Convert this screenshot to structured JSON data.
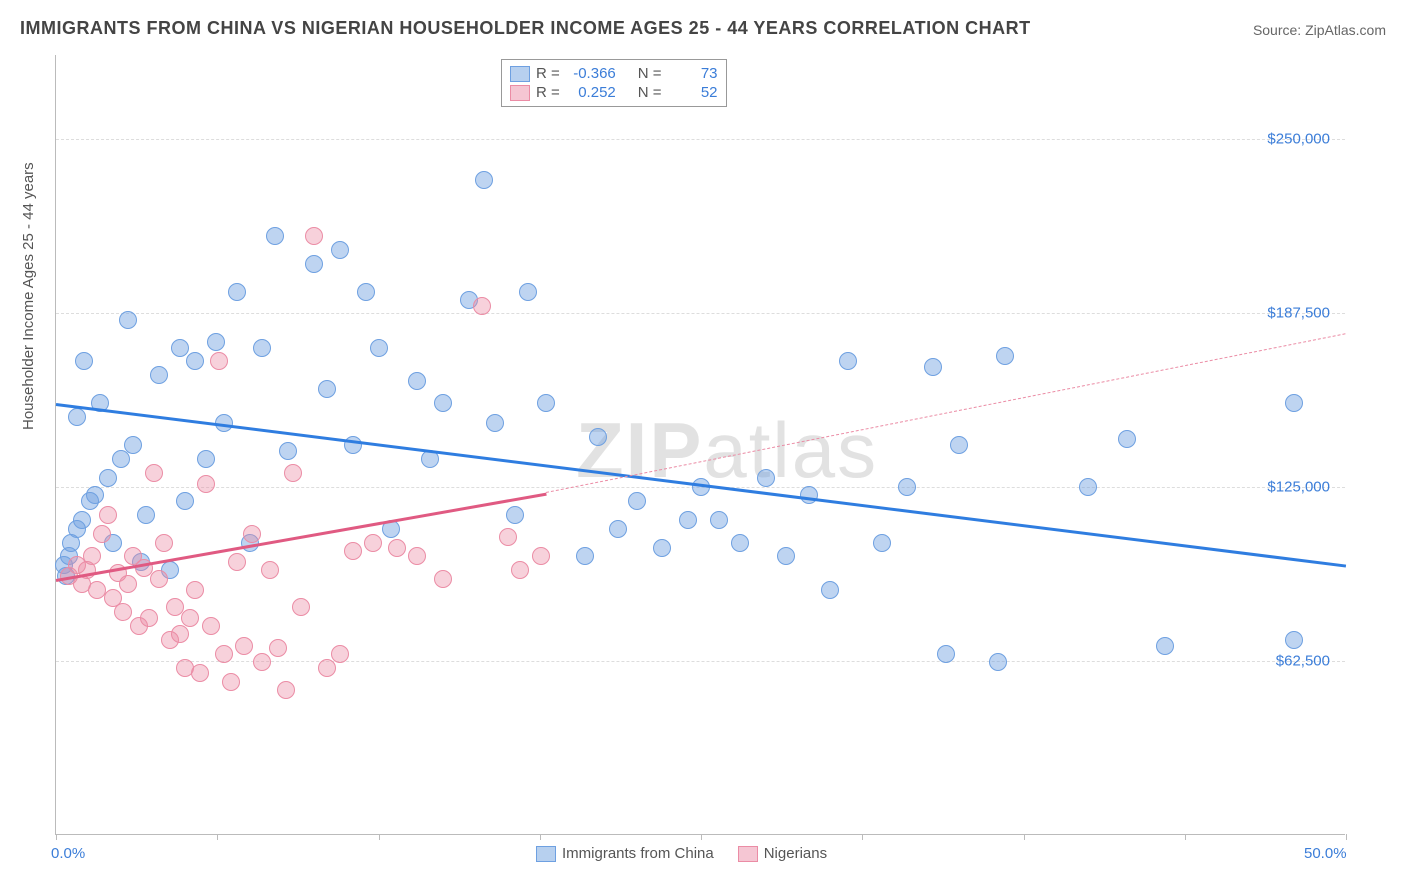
{
  "title": "IMMIGRANTS FROM CHINA VS NIGERIAN HOUSEHOLDER INCOME AGES 25 - 44 YEARS CORRELATION CHART",
  "source": "Source: ZipAtlas.com",
  "ylabel": "Householder Income Ages 25 - 44 years",
  "watermark_bold": "ZIP",
  "watermark_rest": "atlas",
  "chart": {
    "type": "scatter",
    "xlim": [
      0,
      50
    ],
    "ylim": [
      0,
      280000
    ],
    "background_color": "#ffffff",
    "grid_color": "#dddddd",
    "yticks": [
      {
        "v": 62500,
        "label": "$62,500"
      },
      {
        "v": 125000,
        "label": "$125,000"
      },
      {
        "v": 187500,
        "label": "$187,500"
      },
      {
        "v": 250000,
        "label": "$250,000"
      }
    ],
    "xticks_minor": [
      0,
      6.25,
      12.5,
      18.75,
      25,
      31.25,
      37.5,
      43.75,
      50
    ],
    "xtick_labels": [
      {
        "v": 0,
        "label": "0.0%"
      },
      {
        "v": 50,
        "label": "50.0%"
      }
    ]
  },
  "series": [
    {
      "name": "Immigrants from China",
      "color_fill": "rgba(110,160,225,0.45)",
      "color_stroke": "#6ea0e1",
      "swatch_fill": "#b7d0ef",
      "swatch_border": "#6ea0e1",
      "R": "-0.366",
      "N": "73",
      "marker_radius": 9,
      "trend": {
        "x1": 0,
        "y1": 155000,
        "x2": 50,
        "y2": 97000,
        "color": "#2f7de0",
        "width": 3,
        "dashed": false
      },
      "points": [
        [
          0.3,
          97000
        ],
        [
          0.4,
          93000
        ],
        [
          0.5,
          100000
        ],
        [
          0.6,
          105000
        ],
        [
          0.8,
          110000
        ],
        [
          0.8,
          150000
        ],
        [
          1.0,
          113000
        ],
        [
          1.1,
          170000
        ],
        [
          1.3,
          120000
        ],
        [
          1.5,
          122000
        ],
        [
          1.7,
          155000
        ],
        [
          2.0,
          128000
        ],
        [
          2.2,
          105000
        ],
        [
          2.5,
          135000
        ],
        [
          2.8,
          185000
        ],
        [
          3.0,
          140000
        ],
        [
          3.3,
          98000
        ],
        [
          3.5,
          115000
        ],
        [
          4.0,
          165000
        ],
        [
          4.4,
          95000
        ],
        [
          4.8,
          175000
        ],
        [
          5.0,
          120000
        ],
        [
          5.4,
          170000
        ],
        [
          5.8,
          135000
        ],
        [
          6.2,
          177000
        ],
        [
          6.5,
          148000
        ],
        [
          7.0,
          195000
        ],
        [
          7.5,
          105000
        ],
        [
          8.0,
          175000
        ],
        [
          8.5,
          215000
        ],
        [
          9.0,
          138000
        ],
        [
          10.0,
          205000
        ],
        [
          10.5,
          160000
        ],
        [
          11.0,
          210000
        ],
        [
          11.5,
          140000
        ],
        [
          12.0,
          195000
        ],
        [
          12.5,
          175000
        ],
        [
          13.0,
          110000
        ],
        [
          14.0,
          163000
        ],
        [
          14.5,
          135000
        ],
        [
          15.0,
          155000
        ],
        [
          16.0,
          192000
        ],
        [
          16.6,
          235000
        ],
        [
          17.0,
          148000
        ],
        [
          17.8,
          115000
        ],
        [
          18.3,
          195000
        ],
        [
          19.0,
          155000
        ],
        [
          20.5,
          100000
        ],
        [
          21.0,
          143000
        ],
        [
          21.8,
          110000
        ],
        [
          22.5,
          120000
        ],
        [
          23.5,
          103000
        ],
        [
          24.5,
          113000
        ],
        [
          25.0,
          125000
        ],
        [
          25.7,
          113000
        ],
        [
          26.5,
          105000
        ],
        [
          27.5,
          128000
        ],
        [
          28.3,
          100000
        ],
        [
          29.2,
          122000
        ],
        [
          30.0,
          88000
        ],
        [
          30.7,
          170000
        ],
        [
          32.0,
          105000
        ],
        [
          33.0,
          125000
        ],
        [
          34.0,
          168000
        ],
        [
          34.5,
          65000
        ],
        [
          35.0,
          140000
        ],
        [
          36.5,
          62000
        ],
        [
          36.8,
          172000
        ],
        [
          40.0,
          125000
        ],
        [
          41.5,
          142000
        ],
        [
          43.0,
          68000
        ],
        [
          48.0,
          70000
        ],
        [
          48.0,
          155000
        ]
      ]
    },
    {
      "name": "Nigerians",
      "color_fill": "rgba(235,140,165,0.40)",
      "color_stroke": "#eb8ca5",
      "swatch_fill": "#f5c6d3",
      "swatch_border": "#eb8ca5",
      "R": "0.252",
      "N": "52",
      "marker_radius": 9,
      "trend_solid": {
        "x1": 0,
        "y1": 92000,
        "x2": 19,
        "y2": 123000,
        "color": "#e05a82",
        "width": 3,
        "dashed": false
      },
      "trend_dashed": {
        "x1": 19,
        "y1": 123000,
        "x2": 50,
        "y2": 180000,
        "color": "#eb8ca5",
        "width": 1,
        "dashed": true
      },
      "points": [
        [
          0.5,
          93000
        ],
        [
          0.8,
          97000
        ],
        [
          1.0,
          90000
        ],
        [
          1.2,
          95000
        ],
        [
          1.4,
          100000
        ],
        [
          1.6,
          88000
        ],
        [
          1.8,
          108000
        ],
        [
          2.0,
          115000
        ],
        [
          2.2,
          85000
        ],
        [
          2.4,
          94000
        ],
        [
          2.6,
          80000
        ],
        [
          2.8,
          90000
        ],
        [
          3.0,
          100000
        ],
        [
          3.2,
          75000
        ],
        [
          3.4,
          96000
        ],
        [
          3.6,
          78000
        ],
        [
          3.8,
          130000
        ],
        [
          4.0,
          92000
        ],
        [
          4.2,
          105000
        ],
        [
          4.4,
          70000
        ],
        [
          4.6,
          82000
        ],
        [
          4.8,
          72000
        ],
        [
          5.0,
          60000
        ],
        [
          5.2,
          78000
        ],
        [
          5.4,
          88000
        ],
        [
          5.6,
          58000
        ],
        [
          5.8,
          126000
        ],
        [
          6.0,
          75000
        ],
        [
          6.3,
          170000
        ],
        [
          6.5,
          65000
        ],
        [
          6.8,
          55000
        ],
        [
          7.0,
          98000
        ],
        [
          7.3,
          68000
        ],
        [
          7.6,
          108000
        ],
        [
          8.0,
          62000
        ],
        [
          8.3,
          95000
        ],
        [
          8.6,
          67000
        ],
        [
          8.9,
          52000
        ],
        [
          9.2,
          130000
        ],
        [
          9.5,
          82000
        ],
        [
          10.0,
          215000
        ],
        [
          10.5,
          60000
        ],
        [
          11.0,
          65000
        ],
        [
          11.5,
          102000
        ],
        [
          12.3,
          105000
        ],
        [
          13.2,
          103000
        ],
        [
          14.0,
          100000
        ],
        [
          15.0,
          92000
        ],
        [
          16.5,
          190000
        ],
        [
          17.5,
          107000
        ],
        [
          18.0,
          95000
        ],
        [
          18.8,
          100000
        ]
      ]
    }
  ],
  "legend_labels": {
    "r": "R =",
    "n": "N ="
  }
}
